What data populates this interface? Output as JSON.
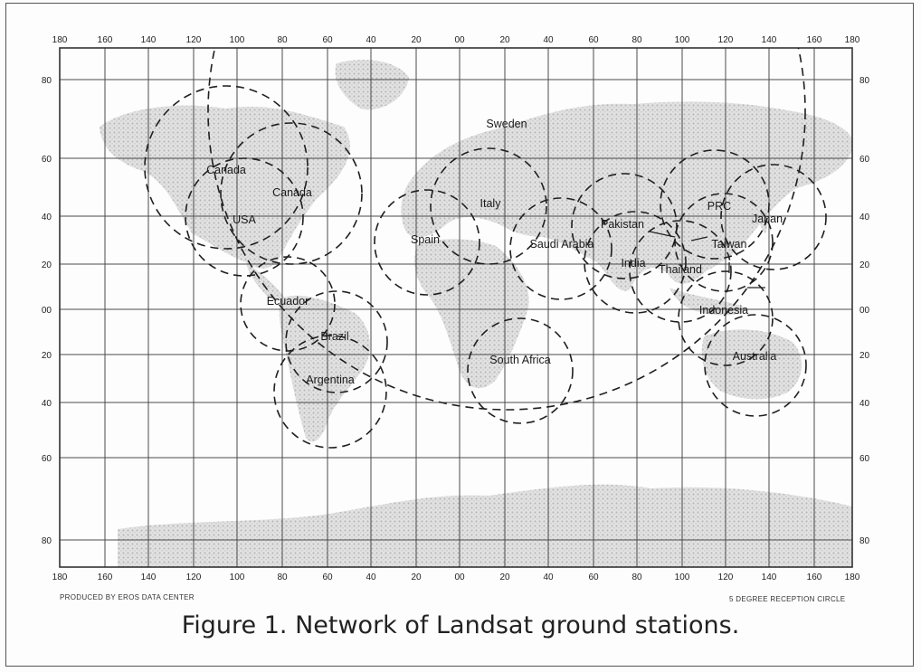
{
  "figure": {
    "caption": "Figure 1. Network of Landsat ground stations.",
    "producer_note": "PRODUCED BY EROS DATA CENTER",
    "circle_note": "5 DEGREE RECEPTION CIRCLE"
  },
  "axes": {
    "top_labels": [
      "180",
      "160",
      "140",
      "120",
      "100",
      "80",
      "60",
      "40",
      "20",
      "00",
      "20",
      "40",
      "60",
      "80",
      "100",
      "120",
      "140",
      "160",
      "180"
    ],
    "bottom_labels": [
      "180",
      "160",
      "140",
      "120",
      "100",
      "80",
      "60",
      "40",
      "20",
      "00",
      "20",
      "40",
      "60",
      "80",
      "100",
      "120",
      "140",
      "160",
      "180"
    ],
    "left_labels": [
      "80",
      "60",
      "40",
      "20",
      "00",
      "20",
      "40",
      "60",
      "80"
    ],
    "right_labels": [
      "80",
      "60",
      "40",
      "20",
      "00",
      "20",
      "40",
      "60",
      "80"
    ]
  },
  "map_labels": [
    {
      "id": "sweden",
      "text": "Sweden"
    },
    {
      "id": "canada-west",
      "text": "Canada"
    },
    {
      "id": "canada-east",
      "text": "Canada"
    },
    {
      "id": "usa",
      "text": "USA"
    },
    {
      "id": "spain",
      "text": "Spain"
    },
    {
      "id": "italy",
      "text": "Italy"
    },
    {
      "id": "saudi-arabia",
      "text": "Saudi Arabia"
    },
    {
      "id": "pakistan",
      "text": "Pakistan"
    },
    {
      "id": "india",
      "text": "India"
    },
    {
      "id": "thailand",
      "text": "Thailand"
    },
    {
      "id": "prc",
      "text": "PRC"
    },
    {
      "id": "japan",
      "text": "Japan"
    },
    {
      "id": "taiwan",
      "text": "Taiwan"
    },
    {
      "id": "ecuador",
      "text": "Ecuador"
    },
    {
      "id": "brazil",
      "text": "Brazil"
    },
    {
      "id": "argentina",
      "text": "Argentina"
    },
    {
      "id": "south-africa",
      "text": "South Africa"
    },
    {
      "id": "indonesia",
      "text": "Indonesia"
    },
    {
      "id": "australia",
      "text": "Australia"
    }
  ],
  "colors": {
    "land": "#d6d6d6",
    "grid": "#4a4a4a",
    "circles": "#1f1f1f",
    "text": "#222222"
  }
}
